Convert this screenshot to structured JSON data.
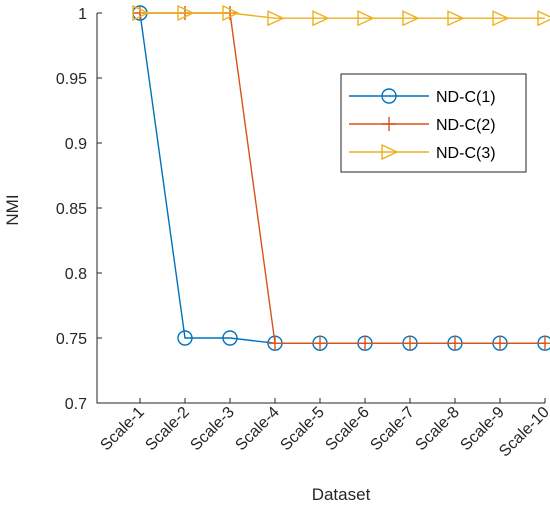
{
  "chart_data": {
    "type": "line",
    "xlabel": "Dataset",
    "ylabel": "NMI",
    "categories": [
      "Scale-1",
      "Scale-2",
      "Scale-3",
      "Scale-4",
      "Scale-5",
      "Scale-6",
      "Scale-7",
      "Scale-8",
      "Scale-9",
      "Scale-10"
    ],
    "ylim": [
      0.7,
      1
    ],
    "yticks": [
      "0.7",
      "0.75",
      "0.8",
      "0.85",
      "0.9",
      "0.95",
      "1"
    ],
    "grid": false,
    "legend_position": "top-right",
    "series": [
      {
        "name": "ND-C(1)",
        "color": "#0072BD",
        "marker": "circle",
        "values": [
          1.0,
          0.75,
          0.75,
          0.746,
          0.746,
          0.746,
          0.746,
          0.746,
          0.746,
          0.746
        ]
      },
      {
        "name": "ND-C(2)",
        "color": "#D95319",
        "marker": "plus",
        "values": [
          1.0,
          1.0,
          1.0,
          0.746,
          0.746,
          0.746,
          0.746,
          0.746,
          0.746,
          0.746
        ]
      },
      {
        "name": "ND-C(3)",
        "color": "#EDB120",
        "marker": "triangle-right",
        "values": [
          1.0,
          1.0,
          1.0,
          0.996,
          0.996,
          0.996,
          0.996,
          0.996,
          0.996,
          0.996
        ]
      }
    ]
  }
}
